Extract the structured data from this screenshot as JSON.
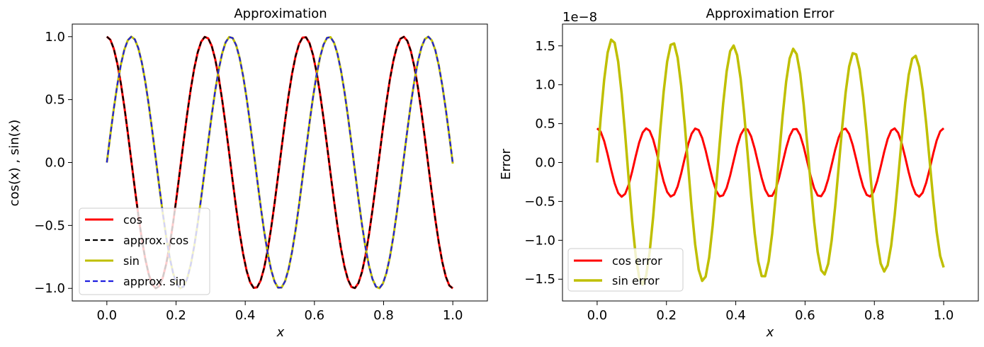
{
  "chart_data": [
    {
      "id": "left",
      "type": "line",
      "title": "Approximation",
      "xlabel": "x",
      "ylabel": "cos(x) , sin(x)",
      "xlim": [
        -0.1,
        1.1
      ],
      "ylim": [
        -1.1,
        1.1
      ],
      "xticks": [
        0.0,
        0.2,
        0.4,
        0.6,
        0.8,
        1.0
      ],
      "xtick_labels": [
        "0.0",
        "0.2",
        "0.4",
        "0.6",
        "0.8",
        "1.0"
      ],
      "yticks": [
        1.0,
        0.5,
        0.0,
        -0.5,
        -1.0
      ],
      "ytick_labels": [
        "1.0",
        "0.5",
        "0.0",
        "−0.5",
        "−1.0"
      ],
      "grid": false,
      "legend_position": "lower-left",
      "frequency_rad_per_unit": 22.0,
      "n_points": 100,
      "series": [
        {
          "name": "cos",
          "function": "cos",
          "color": "#ff0000",
          "style": "solid",
          "width": 3
        },
        {
          "name": "approx. cos",
          "function": "cos",
          "color": "#000000",
          "style": "dashed",
          "width": 2.2
        },
        {
          "name": "sin",
          "function": "sin",
          "color": "#bfbf00",
          "style": "solid",
          "width": 3
        },
        {
          "name": "approx. sin",
          "function": "sin",
          "color": "#1f1fdf",
          "style": "dashed",
          "width": 2.2
        }
      ]
    },
    {
      "id": "right",
      "type": "line",
      "title": "Approximation Error",
      "xlabel": "x",
      "ylabel": "Error",
      "offset_text": "1e−8",
      "xlim": [
        -0.1,
        1.1
      ],
      "ylim": [
        -1.78,
        1.78
      ],
      "xticks": [
        0.0,
        0.2,
        0.4,
        0.6,
        0.8,
        1.0
      ],
      "xtick_labels": [
        "0.0",
        "0.2",
        "0.4",
        "0.6",
        "0.8",
        "1.0"
      ],
      "yticks": [
        1.5,
        1.0,
        0.5,
        0.0,
        -0.5,
        -1.0,
        -1.5
      ],
      "ytick_labels": [
        "1.5",
        "1.0",
        "0.5",
        "0.0",
        "−0.5",
        "−1.0",
        "−1.5"
      ],
      "grid": false,
      "legend_position": "lower-left",
      "n_points": 100,
      "series": [
        {
          "name": "cos error",
          "function": "cos",
          "amplitude": 0.44,
          "frequency_rad_per_unit": 44.0,
          "color": "#ff0000",
          "width": 3
        },
        {
          "name": "sin error",
          "function": "sin",
          "amplitude": 1.6,
          "frequency_rad_per_unit": 36.0,
          "color": "#bfbf00",
          "width": 3.5
        }
      ]
    }
  ]
}
